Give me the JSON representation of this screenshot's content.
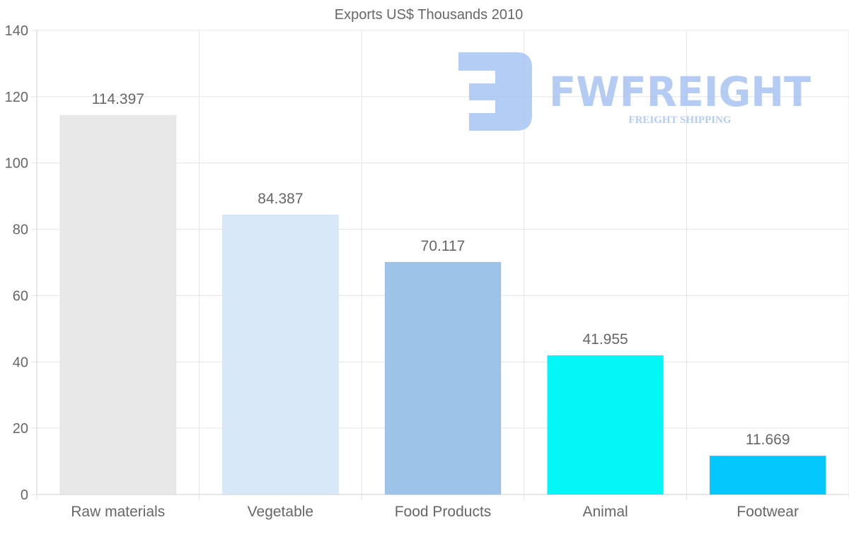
{
  "chart_data": {
    "type": "bar",
    "title": "Exports US$ Thousands 2010",
    "categories": [
      "Raw materials",
      "Vegetable",
      "Food Products",
      "Animal",
      "Footwear"
    ],
    "values": [
      114.397,
      84.387,
      70.117,
      41.955,
      11.669
    ],
    "value_labels": [
      "114.397",
      "84.387",
      "70.117",
      "41.955",
      "11.669"
    ],
    "colors": [
      "#e8e8e8",
      "#d8e8f9",
      "#9dc4e8",
      "#05f6f6",
      "#02c8fe"
    ],
    "xlabel": "",
    "ylabel": "",
    "ylim": [
      0,
      140
    ],
    "yticks": [
      "0",
      "20",
      "40",
      "60",
      "80",
      "100",
      "120",
      "140"
    ],
    "grid": true,
    "legend": "none"
  },
  "watermark": {
    "brand": "FWFREIGHT",
    "tagline": "FREIGHT SHIPPING",
    "color": "#a7c4f2"
  }
}
